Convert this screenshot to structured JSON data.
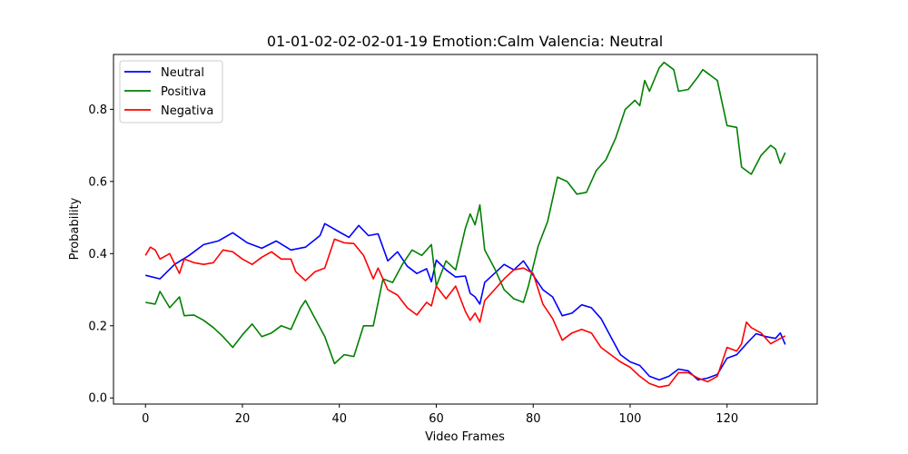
{
  "chart_data": {
    "type": "line",
    "title": "01-01-02-02-02-01-19 Emotion:Calm Valencia: Neutral",
    "xlabel": "Video Frames",
    "ylabel": "Probability",
    "xlim": [
      -6.6,
      138.6
    ],
    "ylim": [
      -0.017,
      0.952
    ],
    "xticks": [
      0,
      20,
      40,
      60,
      80,
      100,
      120
    ],
    "xtick_labels": [
      "0",
      "20",
      "40",
      "60",
      "80",
      "100",
      "120"
    ],
    "yticks": [
      0.0,
      0.2,
      0.4,
      0.6,
      0.8
    ],
    "ytick_labels": [
      "0.0",
      "0.2",
      "0.4",
      "0.6",
      "0.8"
    ],
    "grid": false,
    "legend_position": "top-left",
    "series": [
      {
        "name": "Neutral",
        "color": "#0000ff",
        "points": [
          [
            0,
            0.34
          ],
          [
            3,
            0.33
          ],
          [
            6,
            0.37
          ],
          [
            9,
            0.395
          ],
          [
            12,
            0.425
          ],
          [
            15,
            0.435
          ],
          [
            18,
            0.458
          ],
          [
            21,
            0.43
          ],
          [
            24,
            0.415
          ],
          [
            27,
            0.435
          ],
          [
            30,
            0.41
          ],
          [
            33,
            0.418
          ],
          [
            36,
            0.45
          ],
          [
            37,
            0.483
          ],
          [
            40,
            0.46
          ],
          [
            42,
            0.445
          ],
          [
            44,
            0.478
          ],
          [
            46,
            0.45
          ],
          [
            48,
            0.455
          ],
          [
            50,
            0.38
          ],
          [
            52,
            0.405
          ],
          [
            54,
            0.365
          ],
          [
            56,
            0.345
          ],
          [
            58,
            0.358
          ],
          [
            59,
            0.322
          ],
          [
            60,
            0.382
          ],
          [
            62,
            0.355
          ],
          [
            64,
            0.335
          ],
          [
            66,
            0.338
          ],
          [
            67,
            0.29
          ],
          [
            68,
            0.28
          ],
          [
            69,
            0.26
          ],
          [
            70,
            0.32
          ],
          [
            72,
            0.345
          ],
          [
            74,
            0.37
          ],
          [
            76,
            0.355
          ],
          [
            78,
            0.38
          ],
          [
            80,
            0.34
          ],
          [
            82,
            0.3
          ],
          [
            84,
            0.28
          ],
          [
            86,
            0.228
          ],
          [
            88,
            0.235
          ],
          [
            90,
            0.258
          ],
          [
            92,
            0.25
          ],
          [
            94,
            0.22
          ],
          [
            96,
            0.17
          ],
          [
            98,
            0.12
          ],
          [
            100,
            0.1
          ],
          [
            102,
            0.09
          ],
          [
            104,
            0.06
          ],
          [
            106,
            0.05
          ],
          [
            108,
            0.06
          ],
          [
            110,
            0.08
          ],
          [
            112,
            0.075
          ],
          [
            114,
            0.05
          ],
          [
            116,
            0.055
          ],
          [
            118,
            0.065
          ],
          [
            120,
            0.11
          ],
          [
            122,
            0.12
          ],
          [
            124,
            0.15
          ],
          [
            126,
            0.178
          ],
          [
            128,
            0.17
          ],
          [
            130,
            0.165
          ],
          [
            131,
            0.18
          ],
          [
            132,
            0.148
          ]
        ]
      },
      {
        "name": "Positiva",
        "color": "#008000",
        "points": [
          [
            0,
            0.265
          ],
          [
            2,
            0.26
          ],
          [
            3,
            0.295
          ],
          [
            5,
            0.25
          ],
          [
            7,
            0.28
          ],
          [
            8,
            0.228
          ],
          [
            10,
            0.23
          ],
          [
            12,
            0.215
          ],
          [
            14,
            0.195
          ],
          [
            16,
            0.17
          ],
          [
            18,
            0.14
          ],
          [
            20,
            0.175
          ],
          [
            22,
            0.205
          ],
          [
            24,
            0.17
          ],
          [
            26,
            0.18
          ],
          [
            28,
            0.2
          ],
          [
            30,
            0.19
          ],
          [
            32,
            0.25
          ],
          [
            33,
            0.27
          ],
          [
            35,
            0.22
          ],
          [
            37,
            0.17
          ],
          [
            39,
            0.095
          ],
          [
            41,
            0.12
          ],
          [
            43,
            0.115
          ],
          [
            45,
            0.2
          ],
          [
            47,
            0.2
          ],
          [
            49,
            0.33
          ],
          [
            51,
            0.32
          ],
          [
            53,
            0.37
          ],
          [
            55,
            0.41
          ],
          [
            57,
            0.395
          ],
          [
            59,
            0.425
          ],
          [
            60,
            0.31
          ],
          [
            62,
            0.38
          ],
          [
            64,
            0.355
          ],
          [
            66,
            0.47
          ],
          [
            67,
            0.51
          ],
          [
            68,
            0.48
          ],
          [
            69,
            0.535
          ],
          [
            70,
            0.41
          ],
          [
            72,
            0.36
          ],
          [
            74,
            0.3
          ],
          [
            76,
            0.275
          ],
          [
            78,
            0.265
          ],
          [
            79,
            0.31
          ],
          [
            81,
            0.42
          ],
          [
            83,
            0.49
          ],
          [
            85,
            0.612
          ],
          [
            87,
            0.6
          ],
          [
            89,
            0.565
          ],
          [
            91,
            0.57
          ],
          [
            93,
            0.63
          ],
          [
            95,
            0.66
          ],
          [
            97,
            0.72
          ],
          [
            99,
            0.8
          ],
          [
            101,
            0.825
          ],
          [
            102,
            0.81
          ],
          [
            103,
            0.88
          ],
          [
            104,
            0.85
          ],
          [
            106,
            0.915
          ],
          [
            107,
            0.93
          ],
          [
            109,
            0.91
          ],
          [
            110,
            0.85
          ],
          [
            112,
            0.855
          ],
          [
            114,
            0.89
          ],
          [
            115,
            0.91
          ],
          [
            116,
            0.9
          ],
          [
            118,
            0.88
          ],
          [
            120,
            0.755
          ],
          [
            122,
            0.75
          ],
          [
            123,
            0.64
          ],
          [
            125,
            0.62
          ],
          [
            127,
            0.672
          ],
          [
            129,
            0.7
          ],
          [
            130,
            0.69
          ],
          [
            131,
            0.65
          ],
          [
            132,
            0.68
          ]
        ]
      },
      {
        "name": "Negativa",
        "color": "#ff0000",
        "points": [
          [
            0,
            0.395
          ],
          [
            1,
            0.418
          ],
          [
            2,
            0.41
          ],
          [
            3,
            0.385
          ],
          [
            5,
            0.4
          ],
          [
            7,
            0.345
          ],
          [
            8,
            0.385
          ],
          [
            10,
            0.375
          ],
          [
            12,
            0.37
          ],
          [
            14,
            0.375
          ],
          [
            16,
            0.41
          ],
          [
            18,
            0.405
          ],
          [
            20,
            0.385
          ],
          [
            22,
            0.37
          ],
          [
            24,
            0.39
          ],
          [
            26,
            0.405
          ],
          [
            28,
            0.385
          ],
          [
            30,
            0.385
          ],
          [
            31,
            0.35
          ],
          [
            33,
            0.325
          ],
          [
            35,
            0.35
          ],
          [
            37,
            0.36
          ],
          [
            39,
            0.44
          ],
          [
            41,
            0.43
          ],
          [
            43,
            0.428
          ],
          [
            45,
            0.395
          ],
          [
            47,
            0.33
          ],
          [
            48,
            0.36
          ],
          [
            50,
            0.3
          ],
          [
            52,
            0.285
          ],
          [
            54,
            0.25
          ],
          [
            56,
            0.23
          ],
          [
            58,
            0.265
          ],
          [
            59,
            0.255
          ],
          [
            60,
            0.31
          ],
          [
            62,
            0.275
          ],
          [
            64,
            0.31
          ],
          [
            66,
            0.24
          ],
          [
            67,
            0.215
          ],
          [
            68,
            0.235
          ],
          [
            69,
            0.21
          ],
          [
            70,
            0.27
          ],
          [
            72,
            0.3
          ],
          [
            74,
            0.33
          ],
          [
            76,
            0.355
          ],
          [
            78,
            0.36
          ],
          [
            80,
            0.345
          ],
          [
            82,
            0.26
          ],
          [
            84,
            0.22
          ],
          [
            86,
            0.16
          ],
          [
            88,
            0.18
          ],
          [
            90,
            0.19
          ],
          [
            92,
            0.18
          ],
          [
            94,
            0.14
          ],
          [
            96,
            0.12
          ],
          [
            98,
            0.1
          ],
          [
            100,
            0.085
          ],
          [
            102,
            0.06
          ],
          [
            104,
            0.04
          ],
          [
            106,
            0.03
          ],
          [
            108,
            0.035
          ],
          [
            110,
            0.07
          ],
          [
            112,
            0.07
          ],
          [
            114,
            0.055
          ],
          [
            116,
            0.045
          ],
          [
            118,
            0.06
          ],
          [
            120,
            0.14
          ],
          [
            122,
            0.13
          ],
          [
            123,
            0.15
          ],
          [
            124,
            0.21
          ],
          [
            125,
            0.195
          ],
          [
            127,
            0.18
          ],
          [
            129,
            0.15
          ],
          [
            131,
            0.165
          ],
          [
            132,
            0.172
          ]
        ]
      }
    ]
  }
}
